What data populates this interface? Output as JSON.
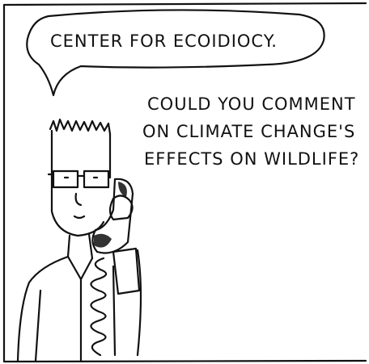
{
  "speech_bubble": {
    "text": "CENTER FOR ECOIDIOCY."
  },
  "caption": {
    "lines": [
      "COULD YOU COMMENT",
      "ON CLIMATE CHANGE'S",
      "EFFECTS ON WILDLIFE?"
    ]
  }
}
